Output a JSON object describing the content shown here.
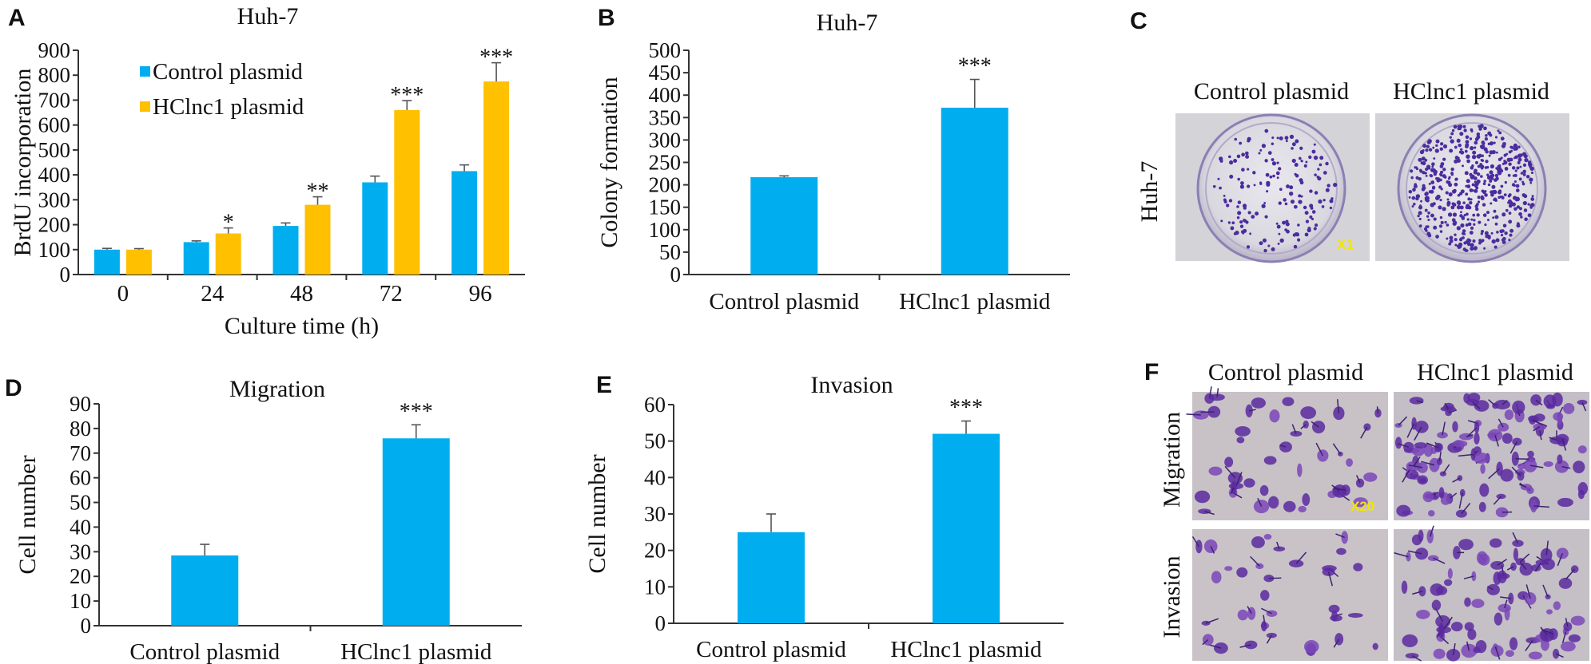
{
  "colors": {
    "control": "#00aeef",
    "hclnc1": "#ffc000",
    "axis": "#333333",
    "stain": "#4b2c9e",
    "plate_bg": "#d8d8da",
    "transwell_bg": "#c7c1c6"
  },
  "panels": {
    "A": {
      "label": "A"
    },
    "B": {
      "label": "B"
    },
    "C": {
      "label": "C",
      "col1": "Control plasmid",
      "col2": "HClnc1 plasmid",
      "row": "Huh-7",
      "mag": "X1"
    },
    "D": {
      "label": "D"
    },
    "E": {
      "label": "E"
    },
    "F": {
      "label": "F",
      "col1": "Control plasmid",
      "col2": "HClnc1 plasmid",
      "row1": "Migration",
      "row2": "Invasion",
      "mag": "X20"
    }
  },
  "chart_data": [
    {
      "id": "A",
      "type": "bar",
      "title": "Huh-7",
      "xlabel": "Culture time (h)",
      "ylabel": "BrdU incorporation",
      "ylim": [
        0,
        900
      ],
      "yticks": [
        0,
        100,
        200,
        300,
        400,
        500,
        600,
        700,
        800,
        900
      ],
      "categories": [
        "0",
        "24",
        "48",
        "72",
        "96"
      ],
      "legend_position": "top-left",
      "series": [
        {
          "name": "Control plasmid",
          "values": [
            100,
            130,
            195,
            370,
            415
          ],
          "errors": [
            5,
            5,
            12,
            25,
            25
          ]
        },
        {
          "name": "HClnc1 plasmid",
          "values": [
            100,
            165,
            280,
            660,
            775
          ],
          "errors": [
            4,
            22,
            32,
            38,
            75
          ]
        }
      ],
      "significance": [
        "",
        "*",
        "**",
        "***",
        "***"
      ]
    },
    {
      "id": "B",
      "type": "bar",
      "title": "Huh-7",
      "xlabel": "",
      "ylabel": "Colony formation",
      "ylim": [
        0,
        500
      ],
      "yticks": [
        0,
        50,
        100,
        150,
        200,
        250,
        300,
        350,
        400,
        450,
        500
      ],
      "categories": [
        "Control plasmid",
        "HClnc1 plasmid"
      ],
      "values": [
        217,
        372
      ],
      "errors": [
        3,
        63
      ],
      "significance": [
        "",
        "***"
      ]
    },
    {
      "id": "D",
      "type": "bar",
      "title": "Migration",
      "xlabel": "",
      "ylabel": "Cell number",
      "ylim": [
        0,
        90
      ],
      "yticks": [
        0,
        10,
        20,
        30,
        40,
        50,
        60,
        70,
        80,
        90
      ],
      "categories": [
        "Control plasmid",
        "HClnc1 plasmid"
      ],
      "values": [
        28.5,
        76
      ],
      "errors": [
        4.5,
        5.5
      ],
      "significance": [
        "",
        "***"
      ]
    },
    {
      "id": "E",
      "type": "bar",
      "title": "Invasion",
      "xlabel": "",
      "ylabel": "Cell number",
      "ylim": [
        0,
        60
      ],
      "yticks": [
        0,
        10,
        20,
        30,
        40,
        50,
        60
      ],
      "categories": [
        "Control plasmid",
        "HClnc1 plasmid"
      ],
      "values": [
        25,
        52
      ],
      "errors": [
        5,
        3.5
      ],
      "significance": [
        "",
        "***"
      ]
    }
  ]
}
